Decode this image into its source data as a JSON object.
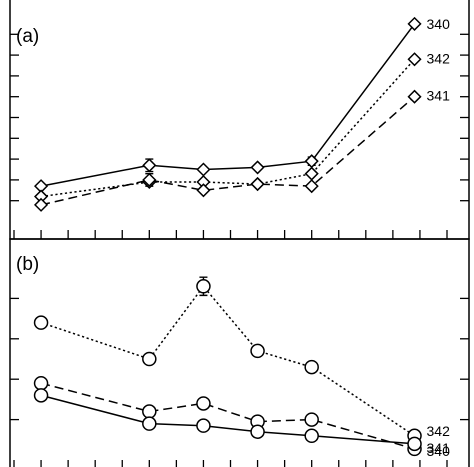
{
  "chart_data": [
    {
      "panel": "(a)",
      "type": "line",
      "x": [
        1,
        3,
        4,
        5,
        6,
        7.9
      ],
      "ylim": [
        0,
        10
      ],
      "ticks_x": [
        0.5,
        1,
        1.5,
        2,
        2.5,
        3,
        3.5,
        4,
        4.5,
        5,
        5.5,
        6,
        6.5,
        7,
        7.5,
        8,
        8.5
      ],
      "ticks_y": [
        1,
        2,
        3,
        4,
        5,
        6,
        7,
        8,
        9
      ],
      "marker": "diamond",
      "series": [
        {
          "name": "340",
          "style": "solid",
          "values": [
            1.7,
            2.7,
            2.5,
            2.6,
            2.9,
            9.5
          ],
          "err": [
            0,
            0.3,
            0,
            0,
            0.2,
            0
          ]
        },
        {
          "name": "342",
          "style": "dotted",
          "values": [
            1.2,
            1.9,
            1.9,
            1.8,
            2.3,
            7.8
          ],
          "err": [
            0,
            0,
            0,
            0,
            0,
            0
          ]
        },
        {
          "name": "341",
          "style": "dashed",
          "values": [
            0.8,
            2.0,
            1.5,
            1.8,
            1.7,
            6.0
          ],
          "err": [
            0,
            0.3,
            0,
            0,
            0,
            0
          ]
        }
      ]
    },
    {
      "panel": "(b)",
      "type": "line",
      "x": [
        1,
        3,
        4,
        5,
        6,
        7.9
      ],
      "ylim": [
        0,
        10
      ],
      "ticks_x": [
        0.5,
        1,
        1.5,
        2,
        2.5,
        3,
        3.5,
        4,
        4.5,
        5,
        5.5,
        6,
        6.5,
        7,
        7.5,
        8,
        8.5
      ],
      "ticks_y": [
        2,
        4,
        6,
        8
      ],
      "marker": "circle",
      "series": [
        {
          "name": "342",
          "style": "dotted",
          "values": [
            6.8,
            5.0,
            8.6,
            5.4,
            4.6,
            1.2
          ],
          "err": [
            0,
            0,
            0.45,
            0,
            0,
            0
          ]
        },
        {
          "name": "341",
          "style": "dashed",
          "values": [
            3.8,
            2.4,
            2.8,
            1.9,
            2.0,
            0.55
          ],
          "err": [
            0,
            0,
            0,
            0,
            0,
            0
          ]
        },
        {
          "name": "340",
          "style": "solid",
          "values": [
            3.2,
            1.8,
            1.7,
            1.4,
            1.2,
            0.8
          ],
          "err": [
            0,
            0,
            0,
            0,
            0,
            0
          ]
        }
      ]
    }
  ]
}
